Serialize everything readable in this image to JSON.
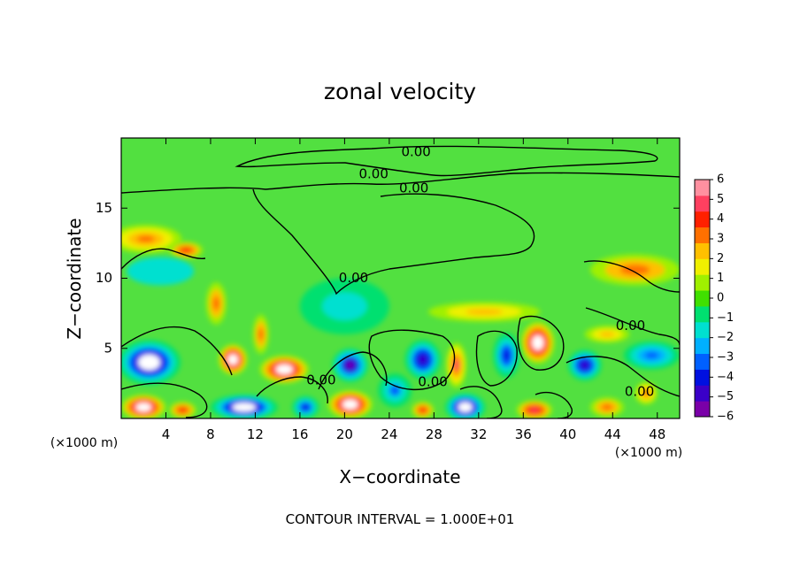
{
  "chart_data": {
    "type": "heatmap",
    "title": "zonal velocity",
    "xlabel": "X−coordinate",
    "ylabel": "Z−coordinate",
    "x_unit_left": "(×1000 m)",
    "x_unit_right": "(×1000 m)",
    "footer": "CONTOUR INTERVAL = 1.000E+01",
    "xlim": [
      0,
      50
    ],
    "ylim": [
      0,
      20
    ],
    "x_ticks": [
      4,
      8,
      12,
      16,
      20,
      24,
      28,
      32,
      36,
      40,
      44,
      48
    ],
    "x_tick_labels": [
      "4",
      "8",
      "12",
      "16",
      "20",
      "24",
      "28",
      "32",
      "36",
      "40",
      "44",
      "48"
    ],
    "y_ticks": [
      5,
      10,
      15
    ],
    "y_tick_labels": [
      "5",
      "10",
      "15"
    ],
    "colorbar": {
      "min": -6,
      "max": 6,
      "tick_values": [
        6,
        5,
        4,
        3,
        2,
        1,
        0,
        -1,
        -2,
        -3,
        -4,
        -5,
        -6
      ],
      "tick_labels": [
        "6",
        "5",
        "4",
        "3",
        "2",
        "1",
        "0",
        "−1",
        "−2",
        "−3",
        "−4",
        "−5",
        "−6"
      ],
      "colors": [
        "#7a00a8",
        "#3a00c8",
        "#0010e0",
        "#0060ff",
        "#00b0ff",
        "#00e0d0",
        "#00e070",
        "#40e000",
        "#a0f000",
        "#f0f000",
        "#ffc000",
        "#ff7000",
        "#ff2000",
        "#ff4060",
        "#ff90a0"
      ]
    },
    "contour_labels": [
      {
        "text": "0.00",
        "x": 26.4,
        "y": 19.0
      },
      {
        "text": "0.00",
        "x": 22.6,
        "y": 17.4
      },
      {
        "text": "0.00",
        "x": 26.2,
        "y": 16.4
      },
      {
        "text": "0.00",
        "x": 20.8,
        "y": 10.0
      },
      {
        "text": "0.00",
        "x": 45.6,
        "y": 6.6
      },
      {
        "text": "0.00",
        "x": 17.9,
        "y": 2.7
      },
      {
        "text": "0.00",
        "x": 27.9,
        "y": 2.6
      },
      {
        "text": "0.00",
        "x": 46.4,
        "y": 1.9
      }
    ],
    "features": [
      {
        "kind": "max",
        "x": 2.2,
        "y": 12.8,
        "value": 3.5,
        "rx": 3.2,
        "ry": 1.0
      },
      {
        "kind": "max",
        "x": 5.8,
        "y": 12.0,
        "value": 4.0,
        "rx": 1.5,
        "ry": 0.6
      },
      {
        "kind": "max",
        "x": 46.0,
        "y": 10.6,
        "value": 3.2,
        "rx": 4.0,
        "ry": 1.1
      },
      {
        "kind": "max",
        "x": 8.5,
        "y": 8.2,
        "value": 3.0,
        "rx": 0.9,
        "ry": 1.5
      },
      {
        "kind": "max",
        "x": 32.5,
        "y": 7.6,
        "value": 2.5,
        "rx": 5.0,
        "ry": 0.7
      },
      {
        "kind": "max",
        "x": 37.3,
        "y": 5.4,
        "value": 6.0,
        "rx": 1.5,
        "ry": 1.5
      },
      {
        "kind": "max",
        "x": 10.0,
        "y": 4.2,
        "value": 6.0,
        "rx": 1.3,
        "ry": 1.1
      },
      {
        "kind": "max",
        "x": 14.6,
        "y": 3.5,
        "value": 6.0,
        "rx": 2.2,
        "ry": 1.0
      },
      {
        "kind": "max",
        "x": 12.5,
        "y": 6.0,
        "value": 3.0,
        "rx": 0.7,
        "ry": 1.4
      },
      {
        "kind": "max",
        "x": 30.0,
        "y": 3.8,
        "value": 4.5,
        "rx": 0.9,
        "ry": 1.6
      },
      {
        "kind": "max",
        "x": 2.0,
        "y": 0.8,
        "value": 6.0,
        "rx": 2.0,
        "ry": 0.9
      },
      {
        "kind": "max",
        "x": 5.5,
        "y": 0.6,
        "value": 4.0,
        "rx": 1.2,
        "ry": 0.6
      },
      {
        "kind": "max",
        "x": 20.5,
        "y": 1.0,
        "value": 6.0,
        "rx": 2.0,
        "ry": 1.0
      },
      {
        "kind": "max",
        "x": 27.0,
        "y": 0.6,
        "value": 4.0,
        "rx": 1.0,
        "ry": 0.6
      },
      {
        "kind": "max",
        "x": 37.0,
        "y": 0.6,
        "value": 5.0,
        "rx": 1.6,
        "ry": 0.7
      },
      {
        "kind": "max",
        "x": 43.5,
        "y": 0.8,
        "value": 3.0,
        "rx": 1.5,
        "ry": 0.7
      },
      {
        "kind": "max",
        "x": 47.0,
        "y": 1.8,
        "value": 3.5,
        "rx": 1.0,
        "ry": 0.8
      },
      {
        "kind": "max",
        "x": 43.5,
        "y": 6.0,
        "value": 2.5,
        "rx": 2.0,
        "ry": 0.6
      },
      {
        "kind": "min",
        "x": 2.5,
        "y": 4.0,
        "value": -6.0,
        "rx": 2.8,
        "ry": 1.6
      },
      {
        "kind": "min",
        "x": 11.0,
        "y": 0.8,
        "value": -6.0,
        "rx": 3.0,
        "ry": 0.9
      },
      {
        "kind": "min",
        "x": 20.5,
        "y": 3.8,
        "value": -5.5,
        "rx": 1.6,
        "ry": 1.2
      },
      {
        "kind": "min",
        "x": 27.0,
        "y": 4.2,
        "value": -5.0,
        "rx": 1.6,
        "ry": 1.4
      },
      {
        "kind": "min",
        "x": 30.8,
        "y": 0.8,
        "value": -6.0,
        "rx": 1.8,
        "ry": 1.0
      },
      {
        "kind": "min",
        "x": 34.5,
        "y": 4.5,
        "value": -4.0,
        "rx": 1.2,
        "ry": 1.6
      },
      {
        "kind": "min",
        "x": 41.5,
        "y": 3.8,
        "value": -5.0,
        "rx": 1.5,
        "ry": 1.1
      },
      {
        "kind": "min",
        "x": 47.5,
        "y": 4.5,
        "value": -3.5,
        "rx": 2.5,
        "ry": 1.0
      },
      {
        "kind": "min",
        "x": 16.5,
        "y": 0.8,
        "value": -4.0,
        "rx": 1.2,
        "ry": 0.8
      },
      {
        "kind": "min",
        "x": 24.5,
        "y": 2.0,
        "value": -3.0,
        "rx": 1.5,
        "ry": 1.2
      },
      {
        "kind": "min",
        "x": 20.0,
        "y": 8.0,
        "value": -1.8,
        "rx": 4.0,
        "ry": 2.0
      },
      {
        "kind": "min",
        "x": 3.5,
        "y": 10.5,
        "value": -1.2,
        "rx": 3.0,
        "ry": 1.0
      }
    ]
  }
}
